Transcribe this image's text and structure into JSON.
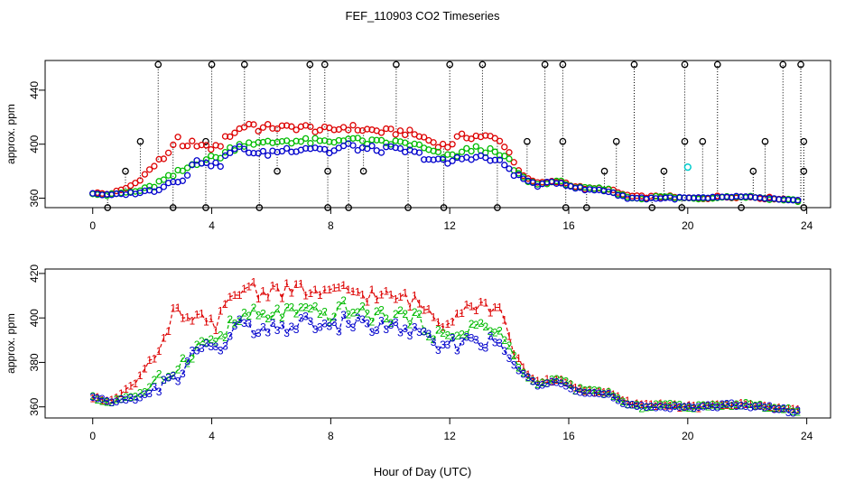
{
  "title": "FEF_110903  CO2 Timeseries",
  "xlabel": "Hour of Day (UTC)",
  "colors": {
    "spike": "#000000",
    "series1": "#dd0000",
    "series2": "#00bb00",
    "series3": "#0000cc",
    "outlier": "#00cccc"
  },
  "chart_data": [
    {
      "type": "scatter",
      "panel": "top",
      "ylabel": "approx. ppm",
      "xlim": [
        -1.6,
        24.8
      ],
      "ylim": [
        353,
        462
      ],
      "x_ticks": [
        0,
        4,
        8,
        12,
        16,
        20,
        24
      ],
      "y_ticks": [
        360,
        400,
        440
      ],
      "grid": false,
      "notes": "symbols are open circles; black circles mark spike readings joined to the trace by dotted lines",
      "spikes_high": [
        2.2,
        4.0,
        5.1,
        7.3,
        7.8,
        10.2,
        12.0,
        13.1,
        15.2,
        15.8,
        18.2,
        19.9,
        21.0,
        23.2,
        23.8
      ],
      "spikes_mid": [
        {
          "x": 1.6,
          "y": 402
        },
        {
          "x": 3.8,
          "y": 402
        },
        {
          "x": 14.6,
          "y": 402
        },
        {
          "x": 15.8,
          "y": 402
        },
        {
          "x": 17.6,
          "y": 402
        },
        {
          "x": 19.9,
          "y": 402
        },
        {
          "x": 20.5,
          "y": 402
        },
        {
          "x": 22.6,
          "y": 402
        },
        {
          "x": 23.9,
          "y": 402
        },
        {
          "x": 1.1,
          "y": 380
        },
        {
          "x": 6.2,
          "y": 380
        },
        {
          "x": 7.9,
          "y": 380
        },
        {
          "x": 9.1,
          "y": 380
        },
        {
          "x": 17.2,
          "y": 380
        },
        {
          "x": 19.2,
          "y": 380
        },
        {
          "x": 22.2,
          "y": 380
        },
        {
          "x": 23.9,
          "y": 380
        }
      ],
      "spikes_low": [
        0.5,
        2.7,
        3.8,
        5.6,
        7.9,
        8.6,
        10.6,
        11.8,
        13.6,
        15.9,
        16.6,
        18.8,
        19.8,
        21.8,
        23.9
      ],
      "outlier_point": {
        "x": 20.0,
        "y": 383
      }
    },
    {
      "type": "scatter",
      "panel": "bottom",
      "ylabel": "approx. ppm",
      "xlim": [
        -1.6,
        24.8
      ],
      "ylim": [
        355,
        422
      ],
      "x_ticks": [
        0,
        4,
        8,
        12,
        16,
        20,
        24
      ],
      "y_ticks": [
        360,
        380,
        400,
        420
      ],
      "grid": false,
      "notes": "symbols are the digits 1, 2, 3 joined by dashed lines"
    }
  ],
  "series": [
    {
      "label": "1",
      "color": "#dd0000",
      "points": [
        [
          0.0,
          364
        ],
        [
          0.5,
          363
        ],
        [
          1.0,
          366
        ],
        [
          1.5,
          372
        ],
        [
          2.0,
          383
        ],
        [
          2.5,
          392
        ],
        [
          2.8,
          405
        ],
        [
          3.1,
          395
        ],
        [
          3.4,
          402
        ],
        [
          3.8,
          397
        ],
        [
          4.2,
          398
        ],
        [
          4.6,
          407
        ],
        [
          5.0,
          412
        ],
        [
          5.3,
          416
        ],
        [
          5.6,
          411
        ],
        [
          6.0,
          413
        ],
        [
          6.5,
          412
        ],
        [
          7.0,
          413
        ],
        [
          7.5,
          411
        ],
        [
          8.0,
          410
        ],
        [
          8.5,
          413
        ],
        [
          9.0,
          411
        ],
        [
          9.5,
          410
        ],
        [
          10.0,
          409
        ],
        [
          10.5,
          409
        ],
        [
          11.0,
          406
        ],
        [
          11.5,
          401
        ],
        [
          11.9,
          398
        ],
        [
          12.3,
          405
        ],
        [
          12.7,
          406
        ],
        [
          13.1,
          406
        ],
        [
          13.5,
          404
        ],
        [
          13.9,
          399
        ],
        [
          14.2,
          384
        ],
        [
          14.6,
          374
        ],
        [
          15.0,
          371
        ],
        [
          15.4,
          372
        ],
        [
          15.8,
          372
        ],
        [
          16.2,
          369
        ],
        [
          16.6,
          367
        ],
        [
          17.0,
          367
        ],
        [
          17.4,
          366
        ],
        [
          17.8,
          363
        ],
        [
          18.2,
          361
        ],
        [
          18.6,
          361
        ],
        [
          19.0,
          361
        ],
        [
          19.4,
          361
        ],
        [
          19.8,
          360
        ],
        [
          20.2,
          360
        ],
        [
          20.6,
          360
        ],
        [
          21.0,
          361
        ],
        [
          21.4,
          361
        ],
        [
          21.8,
          361
        ],
        [
          22.2,
          361
        ],
        [
          22.6,
          360
        ],
        [
          23.0,
          360
        ],
        [
          23.4,
          359
        ],
        [
          23.7,
          359
        ]
      ]
    },
    {
      "label": "2",
      "color": "#00bb00",
      "points": [
        [
          0.0,
          364
        ],
        [
          0.5,
          362
        ],
        [
          1.0,
          364
        ],
        [
          1.5,
          365
        ],
        [
          2.0,
          369
        ],
        [
          2.5,
          374
        ],
        [
          2.8,
          378
        ],
        [
          3.1,
          381
        ],
        [
          3.4,
          386
        ],
        [
          3.8,
          389
        ],
        [
          4.2,
          390
        ],
        [
          4.6,
          396
        ],
        [
          5.0,
          400
        ],
        [
          5.3,
          402
        ],
        [
          5.6,
          400
        ],
        [
          6.0,
          401
        ],
        [
          6.5,
          403
        ],
        [
          7.0,
          402
        ],
        [
          7.5,
          402
        ],
        [
          8.0,
          401
        ],
        [
          8.5,
          405
        ],
        [
          9.0,
          402
        ],
        [
          9.5,
          401
        ],
        [
          10.0,
          401
        ],
        [
          10.5,
          401
        ],
        [
          11.0,
          398
        ],
        [
          11.5,
          393
        ],
        [
          11.9,
          390
        ],
        [
          12.3,
          393
        ],
        [
          12.7,
          396
        ],
        [
          13.1,
          397
        ],
        [
          13.5,
          393
        ],
        [
          13.9,
          390
        ],
        [
          14.2,
          380
        ],
        [
          14.6,
          373
        ],
        [
          15.0,
          370
        ],
        [
          15.4,
          372
        ],
        [
          15.8,
          372
        ],
        [
          16.2,
          368
        ],
        [
          16.6,
          367
        ],
        [
          17.0,
          367
        ],
        [
          17.4,
          366
        ],
        [
          17.8,
          362
        ],
        [
          18.2,
          360
        ],
        [
          18.6,
          360
        ],
        [
          19.0,
          361
        ],
        [
          19.4,
          361
        ],
        [
          19.8,
          360
        ],
        [
          20.2,
          360
        ],
        [
          20.6,
          360
        ],
        [
          21.0,
          361
        ],
        [
          21.4,
          361
        ],
        [
          21.8,
          361
        ],
        [
          22.2,
          361
        ],
        [
          22.6,
          360
        ],
        [
          23.0,
          359
        ],
        [
          23.4,
          359
        ],
        [
          23.7,
          358
        ]
      ]
    },
    {
      "label": "3",
      "color": "#0000cc",
      "points": [
        [
          0.0,
          364
        ],
        [
          0.5,
          362
        ],
        [
          1.0,
          363
        ],
        [
          1.5,
          364
        ],
        [
          2.0,
          366
        ],
        [
          2.5,
          371
        ],
        [
          2.8,
          373
        ],
        [
          3.1,
          376
        ],
        [
          3.4,
          386
        ],
        [
          3.8,
          388
        ],
        [
          4.2,
          383
        ],
        [
          4.6,
          394
        ],
        [
          5.0,
          397
        ],
        [
          5.3,
          395
        ],
        [
          5.6,
          392
        ],
        [
          6.0,
          394
        ],
        [
          6.5,
          396
        ],
        [
          7.0,
          397
        ],
        [
          7.5,
          398
        ],
        [
          8.0,
          394
        ],
        [
          8.5,
          399
        ],
        [
          9.0,
          397
        ],
        [
          9.5,
          396
        ],
        [
          10.0,
          396
        ],
        [
          10.5,
          395
        ],
        [
          11.0,
          392
        ],
        [
          11.5,
          388
        ],
        [
          11.9,
          386
        ],
        [
          12.3,
          389
        ],
        [
          12.7,
          391
        ],
        [
          13.1,
          390
        ],
        [
          13.5,
          388
        ],
        [
          13.9,
          384
        ],
        [
          14.2,
          378
        ],
        [
          14.6,
          373
        ],
        [
          15.0,
          369
        ],
        [
          15.4,
          372
        ],
        [
          15.8,
          371
        ],
        [
          16.2,
          368
        ],
        [
          16.6,
          366
        ],
        [
          17.0,
          366
        ],
        [
          17.4,
          365
        ],
        [
          17.8,
          361
        ],
        [
          18.2,
          360
        ],
        [
          18.6,
          360
        ],
        [
          19.0,
          360
        ],
        [
          19.4,
          360
        ],
        [
          19.8,
          360
        ],
        [
          20.2,
          360
        ],
        [
          20.6,
          360
        ],
        [
          21.0,
          360
        ],
        [
          21.4,
          361
        ],
        [
          21.8,
          361
        ],
        [
          22.2,
          360
        ],
        [
          22.6,
          360
        ],
        [
          23.0,
          359
        ],
        [
          23.4,
          358
        ],
        [
          23.7,
          358
        ]
      ]
    }
  ]
}
